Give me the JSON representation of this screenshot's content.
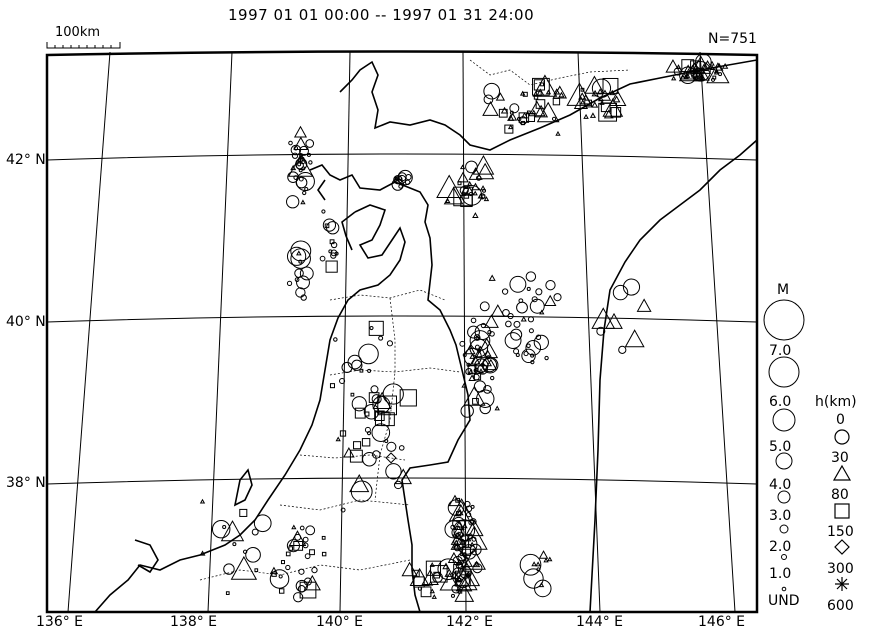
{
  "title": "1997 01 01 00:00 -- 1997 01 31 24:00",
  "scale_bar": {
    "label": "100km"
  },
  "event_count": "N=751",
  "latitude_labels": [
    "42° N",
    "40° N",
    "38° N"
  ],
  "longitude_labels": [
    "136° E",
    "138° E",
    "140° E",
    "142° E",
    "144° E",
    "146° E"
  ],
  "magnitude_legend": {
    "title": "M",
    "labels": [
      "7.0",
      "6.0",
      "5.0",
      "4.0",
      "3.0",
      "2.0",
      "1.0",
      "UND"
    ]
  },
  "depth_legend": {
    "title": "h(km)",
    "labels": [
      "0",
      "30",
      "80",
      "150",
      "300",
      "600"
    ],
    "symbols": [
      "circle",
      "triangle",
      "square",
      "diamond",
      "asterisk"
    ]
  }
}
